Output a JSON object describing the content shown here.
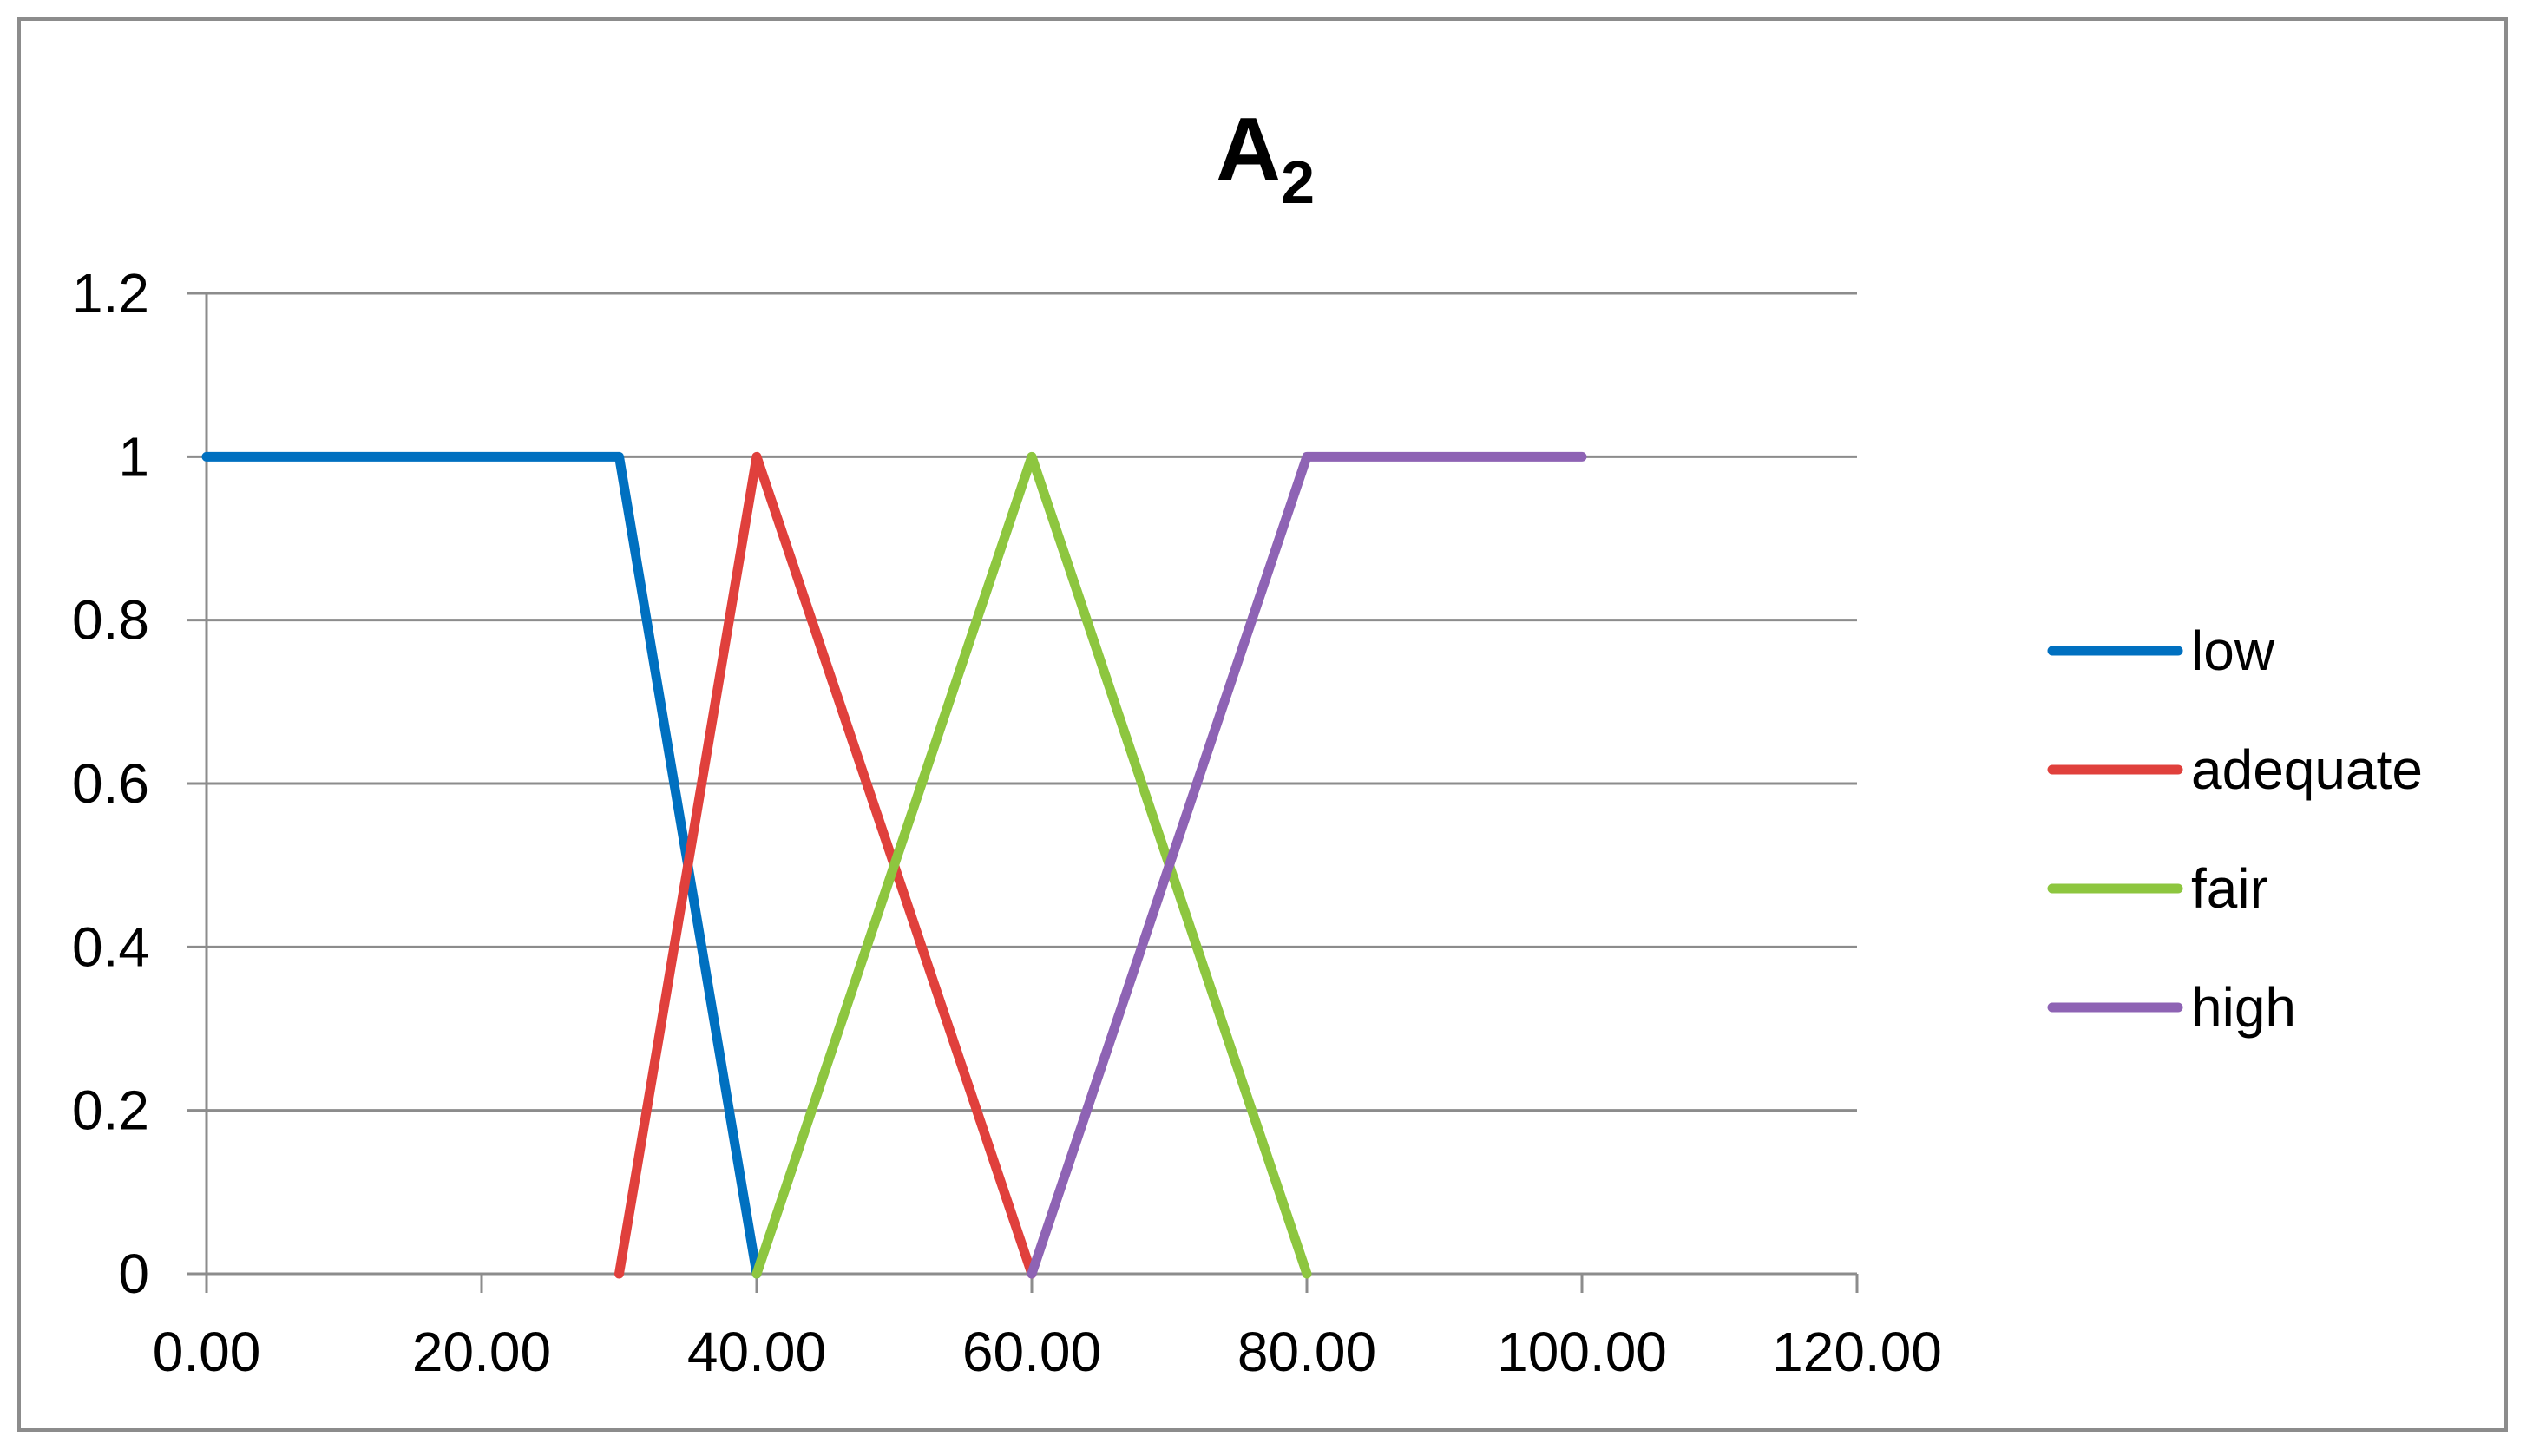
{
  "chart_data": {
    "type": "line",
    "title": "A",
    "title_subscript": "2",
    "xlabel": "",
    "ylabel": "",
    "xlim": [
      0,
      120
    ],
    "ylim": [
      0,
      1.2
    ],
    "x_ticks": [
      "0.00",
      "20.00",
      "40.00",
      "60.00",
      "80.00",
      "100.00",
      "120.00"
    ],
    "y_ticks": [
      "0",
      "0.2",
      "0.4",
      "0.6",
      "0.8",
      "1",
      "1.2"
    ],
    "x_tick_values": [
      0,
      20,
      40,
      60,
      80,
      100,
      120
    ],
    "y_tick_values": [
      0,
      0.2,
      0.4,
      0.6,
      0.8,
      1,
      1.2
    ],
    "grid": "horizontal",
    "legend_position": "right",
    "series": [
      {
        "name": "low",
        "color": "#0070C0",
        "points": [
          [
            0,
            1
          ],
          [
            30,
            1
          ],
          [
            40,
            0
          ]
        ]
      },
      {
        "name": "adequate",
        "color": "#E0403C",
        "points": [
          [
            30,
            0
          ],
          [
            40,
            1
          ],
          [
            60,
            0
          ]
        ]
      },
      {
        "name": "fair",
        "color": "#8DC63F",
        "points": [
          [
            40,
            0
          ],
          [
            60,
            1
          ],
          [
            80,
            0
          ]
        ]
      },
      {
        "name": "high",
        "color": "#8E63B4",
        "points": [
          [
            60,
            0
          ],
          [
            80,
            1
          ],
          [
            100,
            1
          ]
        ]
      }
    ]
  }
}
